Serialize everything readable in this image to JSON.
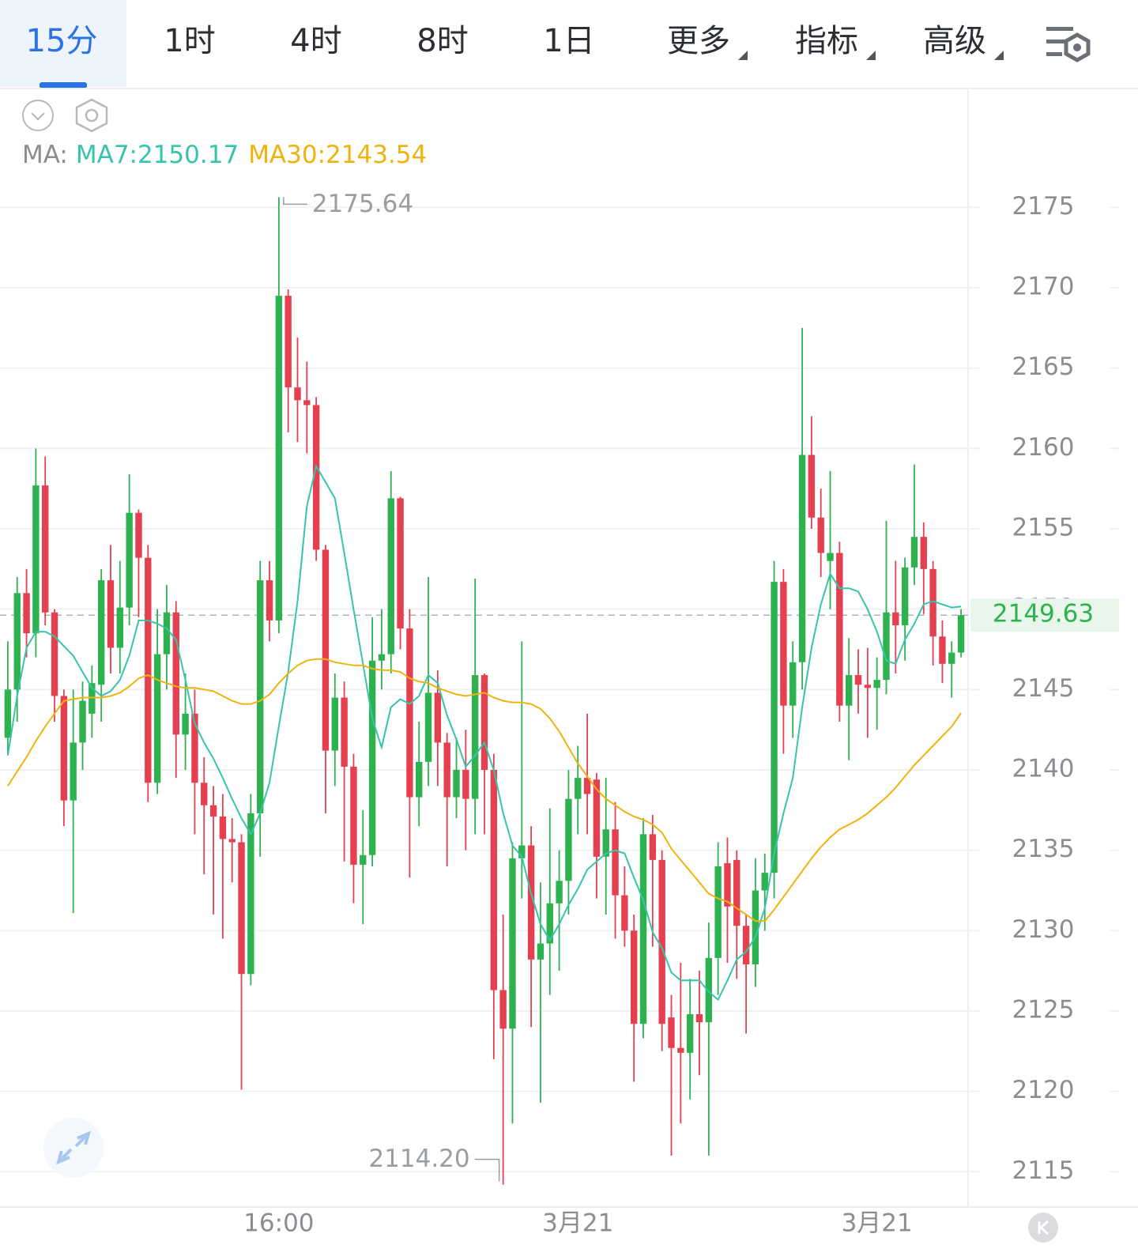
{
  "tabs": [
    "15分",
    "1时",
    "4时",
    "8时",
    "1日",
    "更多",
    "指标",
    "高级"
  ],
  "active_tab": 0,
  "chart_data": {
    "type": "candlestick",
    "legend_prefix": "MA:",
    "categories": [
      null,
      null,
      null,
      null,
      null,
      null,
      null,
      null,
      null,
      null,
      null,
      null,
      null,
      null,
      null,
      null,
      null,
      null,
      null,
      null,
      null,
      null,
      null,
      null,
      null,
      null,
      null,
      null,
      null,
      "16:00",
      null,
      null,
      null,
      null,
      null,
      null,
      null,
      null,
      null,
      null,
      null,
      null,
      null,
      null,
      null,
      null,
      null,
      null,
      null,
      null,
      null,
      null,
      null,
      null,
      null,
      null,
      null,
      null,
      null,
      null,
      null,
      "3月21",
      null,
      null,
      null,
      null,
      null,
      null,
      null,
      null,
      null,
      null,
      null,
      null,
      null,
      null,
      null,
      null,
      null,
      null,
      null,
      null,
      null,
      null,
      null,
      null,
      null,
      null,
      null,
      null,
      null,
      null,
      null,
      "3月21",
      null,
      null,
      null,
      null,
      null,
      null,
      null,
      null,
      null
    ],
    "open": [
      2142,
      2145,
      2151,
      2148.5,
      2157.7,
      2149.8,
      2144.6,
      2138.1,
      2141.7,
      2143.5,
      2145.3,
      2151.8,
      2147.6,
      2150.1,
      2156,
      2153.2,
      2139.2,
      2147.2,
      2149.8,
      2142.2,
      2143.5,
      2139.2,
      2137.8,
      2137.1,
      2135.7,
      2135.5,
      2127.3,
      2137.3,
      2151.8,
      2149.3,
      2169.5,
      2163.8,
      2163,
      2162.7,
      2153.7,
      2141.2,
      2144.5,
      2140.2,
      2134.1,
      2134.7,
      2146.8,
      2147.2,
      2156.9,
      2148.8,
      2138.3,
      2140.5,
      2144.8,
      2141.7,
      2138.3,
      2140,
      2138.2,
      2145.9,
      2140,
      2126.3,
      2123.9,
      2134.5,
      2135.3,
      2128.2,
      2129.2,
      2131.7,
      2133.1,
      2138.2,
      2139.5,
      2139.4,
      2134.6,
      2136.3,
      2132.2,
      2130,
      2124.2,
      2136,
      2134.4,
      2124.6,
      2122.7,
      2122.4,
      2124.8,
      2124.3,
      2128.3,
      2134.2,
      2134.4,
      2130.3,
      2127.9,
      2132.5,
      2133.6,
      2151.7,
      2144,
      2146.7,
      2159.6,
      2155.7,
      2153,
      2153.5,
      2144,
      2145.9,
      2145.3,
      2145.1,
      2145.6,
      2149.8,
      2149,
      2152.6,
      2154.5,
      2152.5,
      2148.3,
      2146.6,
      2147.3
    ],
    "close": [
      2145,
      2151,
      2148.5,
      2157.7,
      2149.8,
      2144.6,
      2138.1,
      2141.7,
      2144.3,
      2145.4,
      2151.8,
      2147.6,
      2150.1,
      2156,
      2153.2,
      2139.2,
      2147.2,
      2149.8,
      2142.2,
      2143.5,
      2139.2,
      2137.8,
      2137.1,
      2135.7,
      2135.5,
      2127.3,
      2137.3,
      2151.8,
      2149.3,
      2169.5,
      2163.8,
      2163,
      2162.7,
      2153.7,
      2141.2,
      2144.5,
      2140.2,
      2134.1,
      2134.7,
      2146.8,
      2147.2,
      2156.9,
      2148.8,
      2138.3,
      2140.5,
      2144.8,
      2141.7,
      2138.3,
      2140,
      2138.2,
      2145.9,
      2140,
      2126.3,
      2123.9,
      2134.5,
      2135.3,
      2128.2,
      2129.2,
      2131.7,
      2133.1,
      2138.2,
      2139.5,
      2138.5,
      2134.6,
      2136.3,
      2132.2,
      2130,
      2124.2,
      2136,
      2134.4,
      2124.2,
      2122.7,
      2122.4,
      2124.8,
      2124.3,
      2128.3,
      2134,
      2131.5,
      2130.3,
      2127.9,
      2132.5,
      2133.6,
      2151.7,
      2144,
      2146.7,
      2159.6,
      2155.7,
      2153.5,
      2153.5,
      2144,
      2145.9,
      2145.3,
      2145.1,
      2145.6,
      2149.8,
      2149,
      2152.6,
      2154.5,
      2152.5,
      2148.3,
      2146.6,
      2147.3,
      2149.63
    ],
    "high": [
      2148,
      2152,
      2152.5,
      2160,
      2159.5,
      2150,
      2145,
      2145,
      2145.5,
      2146.5,
      2152.5,
      2154,
      2153,
      2158.4,
      2156.2,
      2154,
      2150,
      2151.5,
      2150.5,
      2146,
      2145,
      2140.8,
      2139,
      2138.5,
      2137,
      2136,
      2138.5,
      2153,
      2153,
      2175.64,
      2169.9,
      2166.9,
      2165.4,
      2163.2,
      2154,
      2146,
      2145.5,
      2141,
      2137.5,
      2149.5,
      2150,
      2158.6,
      2157,
      2150,
      2143,
      2152,
      2146.2,
      2142.3,
      2142,
      2142.5,
      2151.9,
      2146,
      2141,
      2131,
      2135.5,
      2148,
      2136.5,
      2133,
      2137.6,
      2135,
      2140,
      2141.5,
      2143.5,
      2139.8,
      2139.5,
      2138,
      2134,
      2131,
      2137,
      2137.2,
      2135,
      2126,
      2128,
      2127,
      2127.5,
      2130.5,
      2135.5,
      2135.8,
      2135,
      2131,
      2134.5,
      2134.8,
      2153,
      2152.5,
      2148,
      2167.5,
      2162,
      2157.5,
      2158.6,
      2154.2,
      2148.2,
      2147.5,
      2147.6,
      2147,
      2155.5,
      2153,
      2153.2,
      2159,
      2155.4,
      2153,
      2149.3,
      2148,
      2150
    ],
    "low": [
      2141,
      2143,
      2147,
      2147,
      2149,
      2143,
      2136.5,
      2131.1,
      2140,
      2142,
      2143,
      2146,
      2146,
      2149,
      2149.5,
      2138,
      2138.5,
      2145,
      2139.5,
      2140,
      2136,
      2133.5,
      2131,
      2129.5,
      2133,
      2120.1,
      2126.6,
      2134.6,
      2148,
      2148.5,
      2161,
      2160.4,
      2159.7,
      2153,
      2137.3,
      2139,
      2134.3,
      2131.7,
      2130.4,
      2134,
      2145,
      2146,
      2147.5,
      2133.3,
      2136.5,
      2139,
      2139,
      2134,
      2137,
      2135,
      2136,
      2136,
      2122,
      2114.2,
      2118,
      2132,
      2124,
      2119.3,
      2126,
      2127.5,
      2131,
      2136,
      2136,
      2132,
      2131,
      2129.5,
      2129,
      2120.6,
      2123.3,
      2129,
      2122.5,
      2116,
      2118,
      2119.5,
      2121,
      2116,
      2126,
      2128,
      2127,
      2123.6,
      2126.5,
      2130,
      2132,
      2141,
      2142,
      2145,
      2155,
      2152,
      2150,
      2143,
      2140.6,
      2143.5,
      2142,
      2142.5,
      2144.7,
      2146,
      2146.8,
      2151.5,
      2149.7,
      2146.5,
      2145.4,
      2144.5,
      2147
    ],
    "up_color": "#2eb24f",
    "down_color": "#e5404f",
    "lines": [
      {
        "name": "MA7:2150.17",
        "color": "#36c4ad",
        "values": [
          2140.9,
          2144.6,
          2147.6,
          2148.6,
          2148.6,
          2148.3,
          2147.7,
          2147.1,
          2146.1,
          2145.1,
          2144.6,
          2144.9,
          2145.6,
          2147.1,
          2149.3,
          2149.3,
          2149.1,
          2148.8,
          2148.1,
          2145.6,
          2142.9,
          2141.7,
          2140.7,
          2139.5,
          2138.2,
          2137,
          2136,
          2137.3,
          2139.2,
          2142.7,
          2146.1,
          2150.5,
          2156.4,
          2158.9,
          2157.9,
          2156.9,
          2153.5,
          2150,
          2146.6,
          2143.2,
          2141.4,
          2143.9,
          2144.4,
          2144.1,
          2144.6,
          2145.9,
          2145.4,
          2143.4,
          2141.9,
          2140.2,
          2140.9,
          2141.7,
          2140,
          2137.3,
          2135.3,
          2134.6,
          2132.3,
          2130.4,
          2129.4,
          2130.4,
          2131.6,
          2132.6,
          2133.8,
          2134.3,
          2134.8,
          2135,
          2134.8,
          2133.3,
          2131.9,
          2129.9,
          2128.9,
          2127.4,
          2126.9,
          2126.9,
          2126.9,
          2126.2,
          2125.7,
          2126.9,
          2128.2,
          2128.7,
          2129.6,
          2131.4,
          2134.8,
          2137.3,
          2139.5,
          2143.9,
          2147.6,
          2150.3,
          2152.2,
          2151.3,
          2151.3,
          2151.1,
          2150,
          2148.6,
          2146.8,
          2146.6,
          2148.1,
          2149.1,
          2150.3,
          2150.5,
          2150.3,
          2150.1,
          2150.17
        ]
      },
      {
        "name": "MA30:2143.54",
        "color": "#efb310",
        "values": [
          2139,
          2139.9,
          2140.8,
          2141.8,
          2142.7,
          2143.5,
          2144.3,
          2144.4,
          2144.5,
          2144.5,
          2144.5,
          2144.6,
          2144.8,
          2145.2,
          2145.7,
          2145.9,
          2145.6,
          2145.4,
          2145.2,
          2145.1,
          2145.1,
          2145,
          2144.9,
          2144.6,
          2144.3,
          2144.1,
          2144.1,
          2144.3,
          2144.7,
          2145.4,
          2146,
          2146.5,
          2146.8,
          2146.9,
          2146.9,
          2146.7,
          2146.6,
          2146.5,
          2146.5,
          2146.3,
          2146.2,
          2146.2,
          2146.1,
          2145.7,
          2145.5,
          2145.4,
          2145.1,
          2144.9,
          2144.7,
          2144.6,
          2144.7,
          2144.8,
          2144.5,
          2144.3,
          2144.2,
          2144.2,
          2144.1,
          2143.8,
          2143.2,
          2142.4,
          2141.4,
          2140.4,
          2139.6,
          2138.8,
          2138.2,
          2137.8,
          2137.4,
          2137.1,
          2136.9,
          2136.6,
          2136.1,
          2135.1,
          2134.4,
          2133.7,
          2133,
          2132.3,
          2132,
          2131.8,
          2131.4,
          2131,
          2130.6,
          2130.6,
          2131.3,
          2132.1,
          2132.9,
          2133.7,
          2134.5,
          2135.2,
          2135.8,
          2136.3,
          2136.6,
          2136.9,
          2137.3,
          2137.8,
          2138.3,
          2138.9,
          2139.6,
          2140.3,
          2140.9,
          2141.5,
          2142.1,
          2142.7,
          2143.54
        ]
      }
    ],
    "annotations": [
      {
        "value": 2175.64,
        "label": "2175.64"
      },
      {
        "value": 2114.2,
        "label": "2114.20"
      }
    ],
    "last_price": {
      "value": 2149.63,
      "label": "2149.63"
    },
    "ylim": [
      2112.9,
      2176.1
    ],
    "yticks": [
      2115,
      2120,
      2125,
      2130,
      2135,
      2140,
      2145,
      2150,
      2155,
      2160,
      2165,
      2170,
      2175
    ],
    "grid": true
  }
}
